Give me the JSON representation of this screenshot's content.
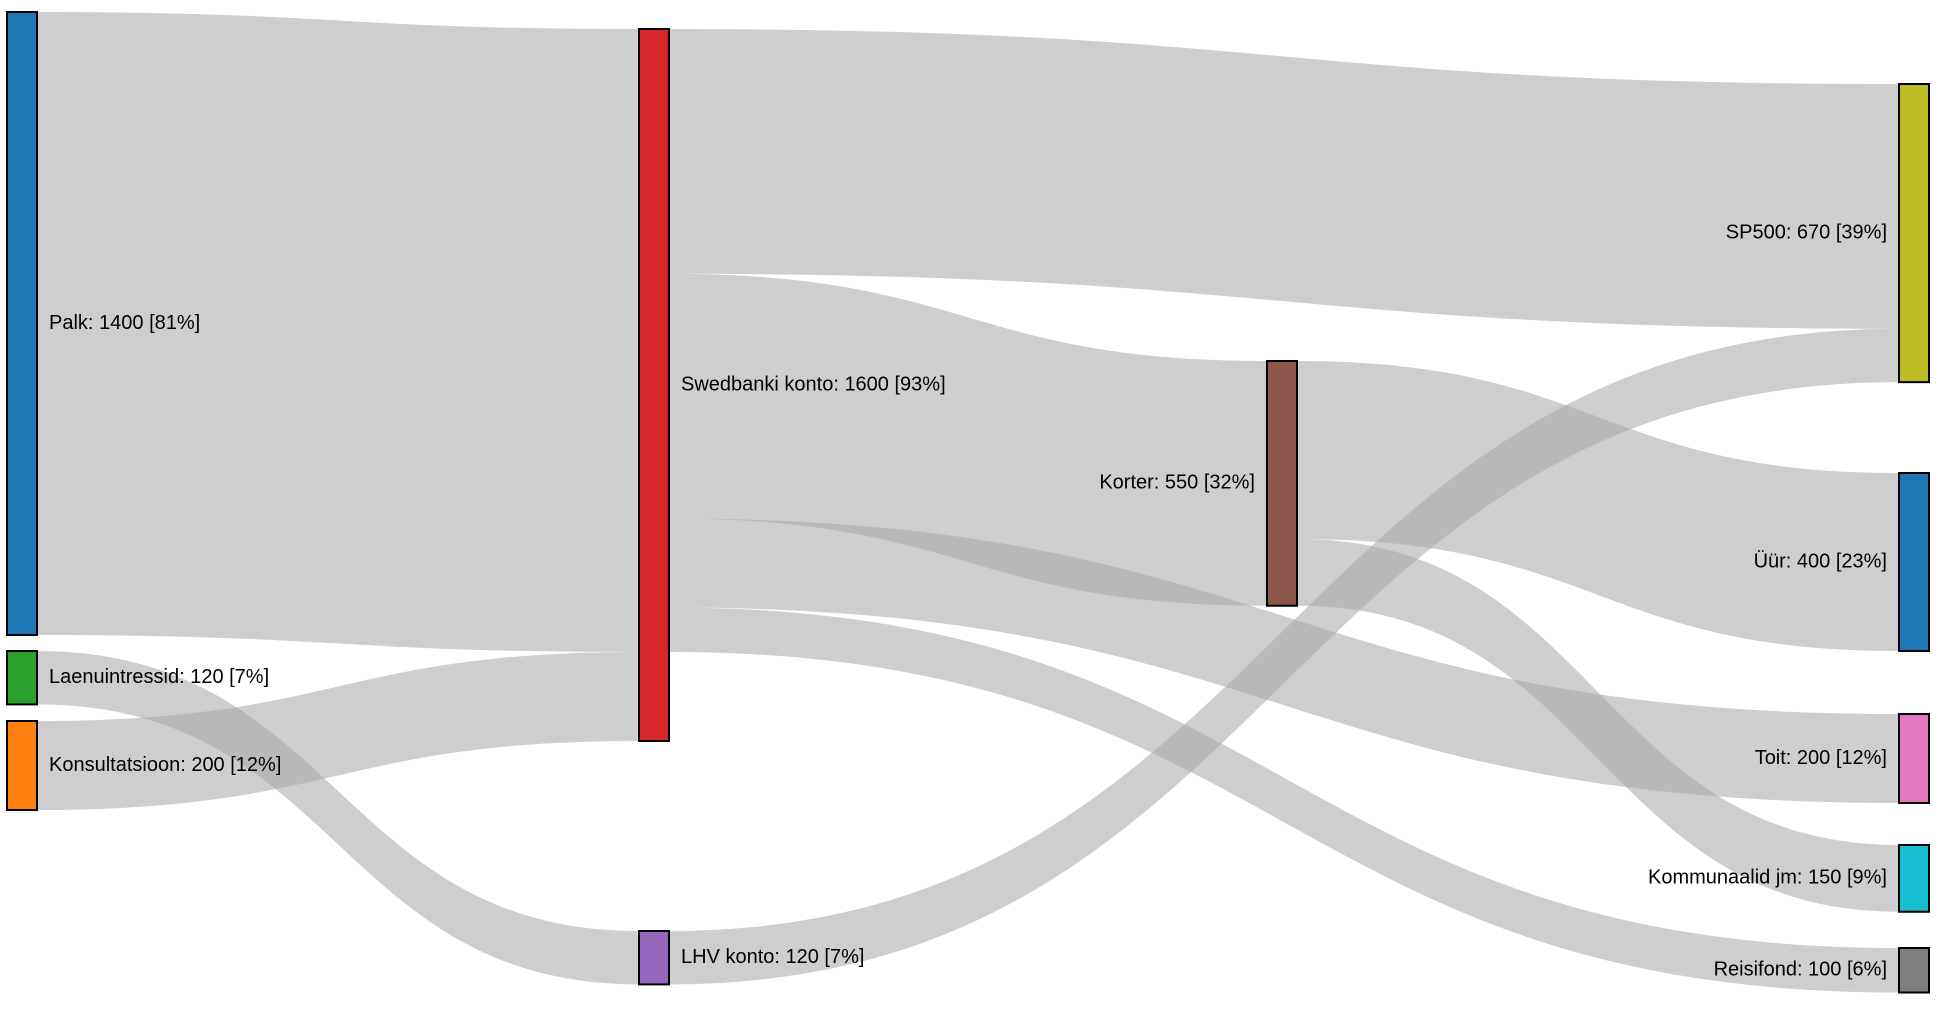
{
  "diagram": {
    "type": "sankey",
    "nodes": [
      {
        "id": "palk",
        "name": "Palk",
        "value": 1400,
        "percent": "81%",
        "color": "#1f77b4",
        "label": "Palk: 1400 [81%]"
      },
      {
        "id": "laen",
        "name": "Laenuintressid",
        "value": 120,
        "percent": "7%",
        "color": "#2ca02c",
        "label": "Laenuintressid: 120 [7%]"
      },
      {
        "id": "kons",
        "name": "Konsultatsioon",
        "value": 200,
        "percent": "12%",
        "color": "#ff7f0e",
        "label": "Konsultatsioon: 200 [12%]"
      },
      {
        "id": "swed",
        "name": "Swedbanki konto",
        "value": 1600,
        "percent": "93%",
        "color": "#d62728",
        "label": "Swedbanki konto: 1600 [93%]"
      },
      {
        "id": "lhv",
        "name": "LHV konto",
        "value": 120,
        "percent": "7%",
        "color": "#9467bd",
        "label": "LHV konto: 120 [7%]"
      },
      {
        "id": "korter",
        "name": "Korter",
        "value": 550,
        "percent": "32%",
        "color": "#8c564b",
        "label": "Korter: 550 [32%]"
      },
      {
        "id": "sp500",
        "name": "SP500",
        "value": 670,
        "percent": "39%",
        "color": "#bcbd22",
        "label": "SP500: 670 [39%]"
      },
      {
        "id": "uur",
        "name": "Üür",
        "value": 400,
        "percent": "23%",
        "color": "#1f77b4",
        "label": "Üür: 400 [23%]"
      },
      {
        "id": "toit",
        "name": "Toit",
        "value": 200,
        "percent": "12%",
        "color": "#e377c2",
        "label": "Toit: 200 [12%]"
      },
      {
        "id": "komm",
        "name": "Kommunaalid jm",
        "value": 150,
        "percent": "9%",
        "color": "#17becf",
        "label": "Kommunaalid jm: 150 [9%]"
      },
      {
        "id": "reis",
        "name": "Reisifond",
        "value": 100,
        "percent": "6%",
        "color": "#7f7f7f",
        "label": "Reisifond: 100 [6%]"
      }
    ],
    "links": [
      {
        "source": "palk",
        "target": "swed",
        "value": 1400
      },
      {
        "source": "laen",
        "target": "lhv",
        "value": 120
      },
      {
        "source": "kons",
        "target": "swed",
        "value": 200
      },
      {
        "source": "swed",
        "target": "sp500",
        "value": 550
      },
      {
        "source": "swed",
        "target": "korter",
        "value": 550
      },
      {
        "source": "swed",
        "target": "toit",
        "value": 200
      },
      {
        "source": "swed",
        "target": "reis",
        "value": 100
      },
      {
        "source": "lhv",
        "target": "sp500",
        "value": 120
      },
      {
        "source": "korter",
        "target": "uur",
        "value": 400
      },
      {
        "source": "korter",
        "target": "komm",
        "value": 150
      }
    ]
  }
}
